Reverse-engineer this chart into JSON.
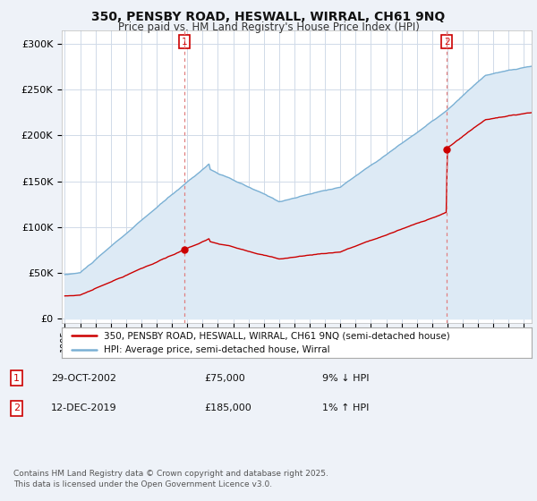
{
  "title": "350, PENSBY ROAD, HESWALL, WIRRAL, CH61 9NQ",
  "subtitle": "Price paid vs. HM Land Registry's House Price Index (HPI)",
  "ylabel_ticks": [
    "£0",
    "£50K",
    "£100K",
    "£150K",
    "£200K",
    "£250K",
    "£300K"
  ],
  "ytick_values": [
    0,
    50000,
    100000,
    150000,
    200000,
    250000,
    300000
  ],
  "ylim": [
    -5000,
    315000
  ],
  "xlim_start": 1994.8,
  "xlim_end": 2025.5,
  "hpi_color": "#7ab0d4",
  "hpi_fill_color": "#ddeaf5",
  "price_color": "#cc0000",
  "vline_color": "#e08080",
  "marker1_date": 2002.83,
  "marker1_price": 75000,
  "marker1_label": "1",
  "marker2_date": 2019.95,
  "marker2_price": 185000,
  "marker2_label": "2",
  "legend_line1": "350, PENSBY ROAD, HESWALL, WIRRAL, CH61 9NQ (semi-detached house)",
  "legend_line2": "HPI: Average price, semi-detached house, Wirral",
  "table_row1": [
    "1",
    "29-OCT-2002",
    "£75,000",
    "9% ↓ HPI"
  ],
  "table_row2": [
    "2",
    "12-DEC-2019",
    "£185,000",
    "1% ↑ HPI"
  ],
  "footer": "Contains HM Land Registry data © Crown copyright and database right 2025.\nThis data is licensed under the Open Government Licence v3.0.",
  "bg_color": "#eef2f8",
  "plot_bg": "#ffffff",
  "grid_color": "#d0dae8"
}
